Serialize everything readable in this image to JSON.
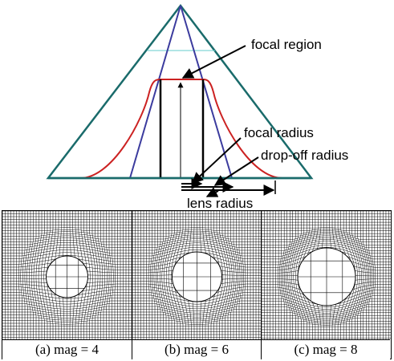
{
  "diagram": {
    "labels": {
      "focal_region": "focal region",
      "focal_radius": "focal radius",
      "dropoff_radius": "drop-off radius",
      "lens_radius": "lens radius"
    },
    "colors": {
      "triangle": "#1a6b6b",
      "inner_cone": "#3b3b9e",
      "profile": "#cc2222",
      "focal_line": "#66cccc"
    }
  },
  "panels": [
    {
      "caption": "(a) mag = 4",
      "magnification": 4
    },
    {
      "caption": "(b) mag = 6",
      "magnification": 6
    },
    {
      "caption": "(c) mag = 8",
      "magnification": 8
    }
  ]
}
